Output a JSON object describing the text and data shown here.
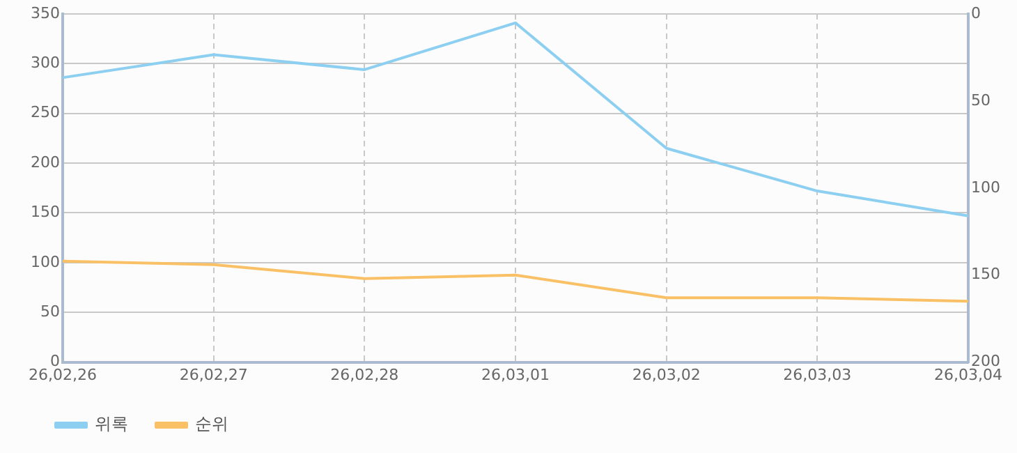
{
  "chart_data": {
    "type": "line",
    "categories": [
      "26,02,26",
      "26,02,27",
      "26,02,28",
      "26,03,01",
      "26,03,02",
      "26,03,03",
      "26,03,04"
    ],
    "series": [
      {
        "name": "위록",
        "color": "#8dcff0",
        "values": [
          286,
          309,
          294,
          341,
          215,
          172,
          147
        ]
      },
      {
        "name": "순위",
        "color": "#f9c065",
        "axis": "y2",
        "values": [
          142,
          144,
          152,
          150,
          163,
          163,
          165
        ]
      }
    ],
    "ylim": [
      0,
      350
    ],
    "yticks": [
      0,
      50,
      100,
      150,
      200,
      250,
      300,
      350
    ],
    "y2lim": [
      200,
      0
    ],
    "y2ticks": [
      0,
      50,
      100,
      150,
      200
    ],
    "grid": true,
    "legend": "bottom left",
    "marker": "none",
    "line_style": "solid"
  }
}
